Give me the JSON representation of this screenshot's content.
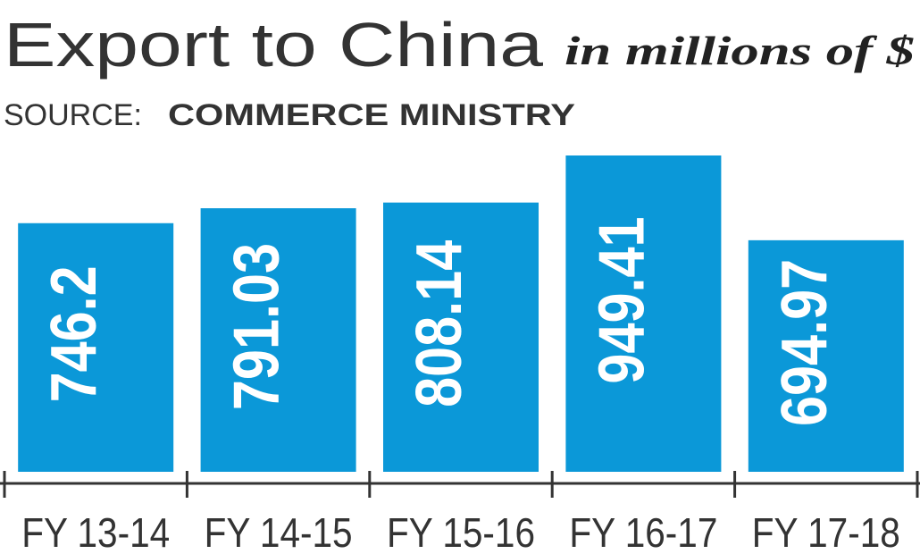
{
  "chart_data": {
    "type": "bar",
    "title": "Export to China",
    "subtitle": "in millions of $",
    "source_label": "SOURCE:",
    "source": "COMMERCE MINISTRY",
    "categories": [
      "FY 13-14",
      "FY 14-15",
      "FY 15-16",
      "FY 16-17",
      "FY 17-18"
    ],
    "values": [
      746.2,
      791.03,
      808.14,
      949.41,
      694.97
    ],
    "color": "#0b98d8"
  }
}
